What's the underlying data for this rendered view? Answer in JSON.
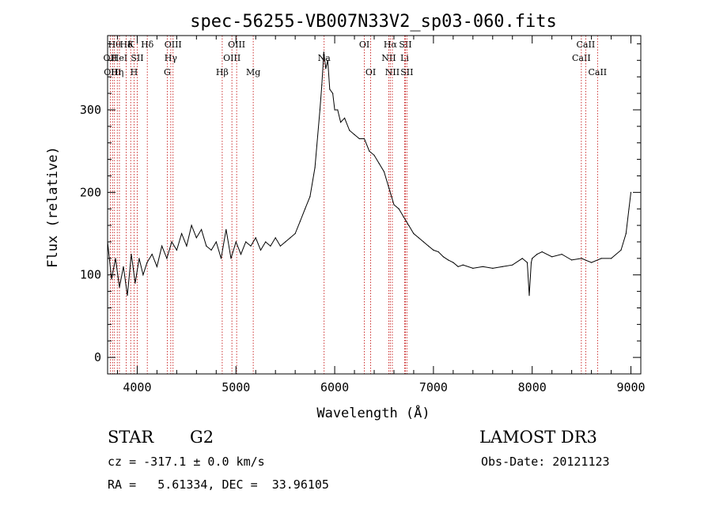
{
  "chart_data": {
    "type": "line",
    "title": "spec-56255-VB007N33V2_sp03-060.fits",
    "xlabel": "Wavelength (Å)",
    "ylabel": "Flux (relative)",
    "xlim": [
      3700,
      9100
    ],
    "ylim": [
      -20,
      390
    ],
    "xticks": [
      4000,
      5000,
      6000,
      7000,
      8000,
      9000
    ],
    "yticks": [
      0,
      100,
      200,
      300
    ],
    "grid": false,
    "legend": "none",
    "series": [
      {
        "color": "#000000",
        "x": [
          3700,
          3740,
          3780,
          3820,
          3860,
          3900,
          3940,
          3980,
          4020,
          4060,
          4100,
          4150,
          4200,
          4250,
          4300,
          4350,
          4400,
          4450,
          4500,
          4550,
          4600,
          4650,
          4700,
          4750,
          4800,
          4850,
          4900,
          4950,
          5000,
          5050,
          5100,
          5150,
          5200,
          5250,
          5300,
          5350,
          5400,
          5450,
          5500,
          5550,
          5600,
          5650,
          5700,
          5750,
          5800,
          5850,
          5870,
          5890,
          5910,
          5930,
          5950,
          5980,
          6000,
          6030,
          6060,
          6100,
          6150,
          6200,
          6250,
          6300,
          6350,
          6400,
          6450,
          6500,
          6550,
          6600,
          6650,
          6700,
          6750,
          6800,
          6850,
          6900,
          6950,
          7000,
          7050,
          7100,
          7150,
          7200,
          7250,
          7300,
          7400,
          7500,
          7600,
          7700,
          7800,
          7900,
          7950,
          7970,
          7990,
          8000,
          8050,
          8100,
          8200,
          8300,
          8400,
          8500,
          8600,
          8700,
          8800,
          8900,
          8950,
          8980,
          9000
        ],
        "y": [
          140,
          95,
          120,
          85,
          110,
          75,
          125,
          90,
          120,
          100,
          115,
          125,
          110,
          135,
          120,
          140,
          130,
          150,
          135,
          160,
          145,
          155,
          135,
          130,
          140,
          120,
          155,
          120,
          140,
          125,
          140,
          135,
          145,
          130,
          140,
          135,
          145,
          135,
          140,
          145,
          150,
          165,
          180,
          195,
          230,
          300,
          330,
          370,
          350,
          360,
          325,
          320,
          300,
          300,
          285,
          290,
          275,
          270,
          265,
          265,
          250,
          245,
          235,
          225,
          205,
          185,
          180,
          170,
          160,
          150,
          145,
          140,
          135,
          130,
          128,
          122,
          118,
          115,
          110,
          112,
          108,
          110,
          108,
          110,
          112,
          120,
          115,
          75,
          115,
          120,
          125,
          128,
          122,
          125,
          118,
          120,
          115,
          120,
          120,
          130,
          150,
          180,
          200
        ]
      }
    ],
    "lines": [
      {
        "wavelength": 3727,
        "label": "OII",
        "row": 1
      },
      {
        "wavelength": 3750,
        "label": "OIII",
        "row": 2
      },
      {
        "wavelength": 3770,
        "label": "Hθ",
        "row": 0
      },
      {
        "wavelength": 3798,
        "label": "Hη",
        "row": 2
      },
      {
        "wavelength": 3820,
        "label": "HeI",
        "row": 1
      },
      {
        "wavelength": 3889,
        "label": "Hδ",
        "row": 0
      },
      {
        "wavelength": 3934,
        "label": "K",
        "row": 0
      },
      {
        "wavelength": 3968,
        "label": "H",
        "row": 2
      },
      {
        "wavelength": 4000,
        "label": "SII",
        "row": 1
      },
      {
        "wavelength": 4102,
        "label": "Hδ",
        "row": 0
      },
      {
        "wavelength": 4304,
        "label": "G",
        "row": 2
      },
      {
        "wavelength": 4340,
        "label": "Hγ",
        "row": 1
      },
      {
        "wavelength": 4363,
        "label": "OIII",
        "row": 0
      },
      {
        "wavelength": 4861,
        "label": "Hβ",
        "row": 2
      },
      {
        "wavelength": 4959,
        "label": "OIII",
        "row": 1
      },
      {
        "wavelength": 5007,
        "label": "OIII",
        "row": 0
      },
      {
        "wavelength": 5175,
        "label": "Mg",
        "row": 2
      },
      {
        "wavelength": 5893,
        "label": "Na",
        "row": 1
      },
      {
        "wavelength": 6300,
        "label": "OI",
        "row": 0
      },
      {
        "wavelength": 6364,
        "label": "OI",
        "row": 2
      },
      {
        "wavelength": 6548,
        "label": "NII",
        "row": 1
      },
      {
        "wavelength": 6563,
        "label": "Hα",
        "row": 0
      },
      {
        "wavelength": 6584,
        "label": "NII",
        "row": 2
      },
      {
        "wavelength": 6708,
        "label": "Li",
        "row": 1
      },
      {
        "wavelength": 6716,
        "label": "SII",
        "row": 0
      },
      {
        "wavelength": 6731,
        "label": "SII",
        "row": 2
      },
      {
        "wavelength": 8498,
        "label": "CaII",
        "row": 1
      },
      {
        "wavelength": 8542,
        "label": "CaII",
        "row": 0
      },
      {
        "wavelength": 8662,
        "label": "CaII",
        "row": 2
      }
    ]
  },
  "info": {
    "object_class": "STAR",
    "subclass": "G2",
    "survey": "LAMOST DR3",
    "cz": "cz = -317.1 ± 0.0 km/s",
    "obs_date": "Obs-Date: 20121123",
    "coords": "RA =   5.61334, DEC =  33.96105"
  }
}
